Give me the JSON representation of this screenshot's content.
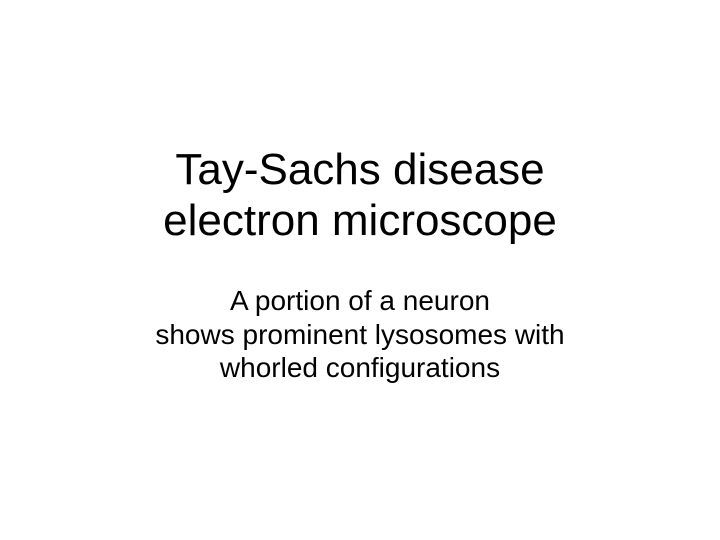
{
  "slide": {
    "title_line1": "Tay-Sachs disease",
    "title_line2": "electron microscope",
    "subtitle_line1": "A portion of a neuron",
    "subtitle_line2": "shows prominent lysosomes with",
    "subtitle_line3": "whorled configurations",
    "background_color": "#ffffff",
    "text_color": "#000000",
    "title_fontsize": 44,
    "subtitle_fontsize": 28,
    "font_family": "Arial"
  }
}
